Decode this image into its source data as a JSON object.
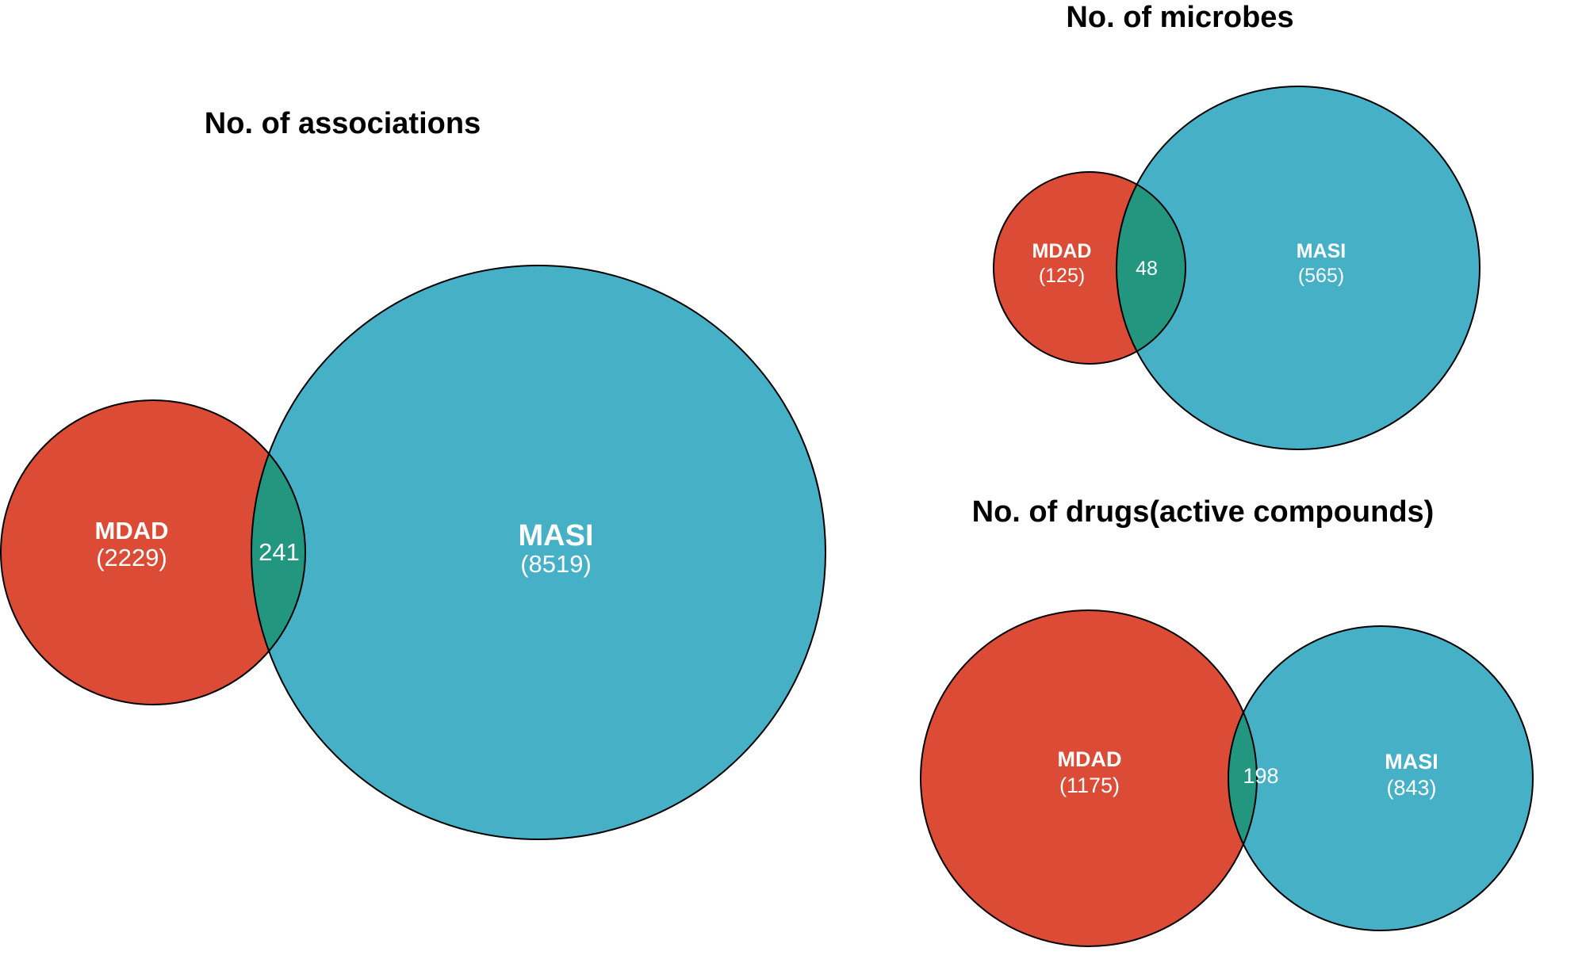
{
  "colors": {
    "mdad": "#DB4B35",
    "masi": "#46B0C7",
    "overlap": "#22967F",
    "outline": "#000000"
  },
  "diagrams": [
    {
      "title": "No. of associations",
      "left": {
        "name": "MDAD",
        "count": "(2229)"
      },
      "right": {
        "name": "MASI",
        "count": "(8519)"
      },
      "overlap": "241"
    },
    {
      "title": "No. of microbes",
      "left": {
        "name": "MDAD",
        "count": "(125)"
      },
      "right": {
        "name": "MASI",
        "count": "(565)"
      },
      "overlap": "48"
    },
    {
      "title": "No. of drugs(active compounds)",
      "left": {
        "name": "MDAD",
        "count": "(1175)"
      },
      "right": {
        "name": "MASI",
        "count": "(843)"
      },
      "overlap": "198"
    }
  ]
}
